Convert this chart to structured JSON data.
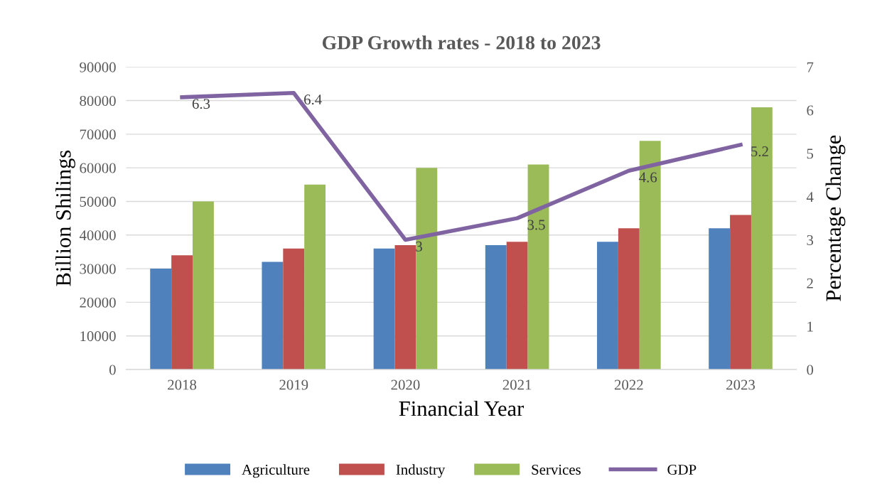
{
  "chart_data": {
    "type": "bar",
    "title": "GDP Growth rates - 2018 to 2023",
    "xlabel": "Financial Year",
    "ylabel": "Billion Shilings",
    "y2label": "Percentage Change",
    "categories": [
      "2018",
      "2019",
      "2020",
      "2021",
      "2022",
      "2023"
    ],
    "series": [
      {
        "name": "Agriculture",
        "color": "#4f81bd",
        "values": [
          30000,
          32000,
          36000,
          37000,
          38000,
          42000
        ]
      },
      {
        "name": "Industry",
        "color": "#c0504d",
        "values": [
          34000,
          36000,
          37000,
          38000,
          42000,
          46000
        ]
      },
      {
        "name": "Services",
        "color": "#9bbb59",
        "values": [
          50000,
          55000,
          60000,
          61000,
          68000,
          78000
        ]
      },
      {
        "name": "GDP",
        "type": "line",
        "axis": "y2",
        "color": "#8064a2",
        "values": [
          6.3,
          6.4,
          3,
          3.5,
          4.6,
          5.2
        ],
        "value_labels": [
          "6.3",
          "6.4",
          "3",
          "3.5",
          "4.6",
          "5.2"
        ]
      }
    ],
    "ylim": [
      0,
      90000
    ],
    "yticks": [
      0,
      10000,
      20000,
      30000,
      40000,
      50000,
      60000,
      70000,
      80000,
      90000
    ],
    "y2lim": [
      0,
      7
    ],
    "y2ticks": [
      0,
      1,
      2,
      3,
      4,
      5,
      6,
      7
    ],
    "grid": "y",
    "legend": "bottom",
    "marker": "none",
    "line_style": "solid"
  }
}
